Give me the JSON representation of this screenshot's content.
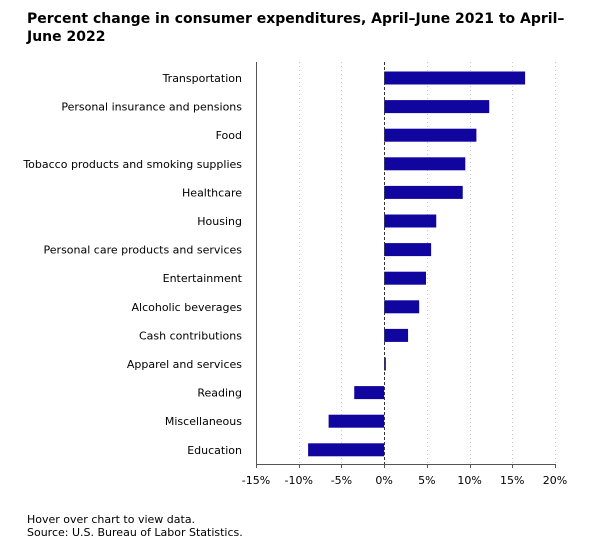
{
  "chart_data": {
    "type": "bar",
    "orientation": "horizontal",
    "title": "Percent change in consumer expenditures, April–June 2021 to April–June 2022",
    "xlabel": "",
    "ylabel": "",
    "xlim": [
      -15,
      20
    ],
    "x_ticks": [
      -15,
      -10,
      -5,
      0,
      5,
      10,
      15,
      20
    ],
    "x_tick_labels": [
      "-15%",
      "-10%",
      "-5%",
      "0%",
      "5%",
      "10%",
      "15%",
      "20%"
    ],
    "grid": true,
    "categories": [
      "Transportation",
      "Personal insurance and pensions",
      "Food",
      "Tobacco products and smoking supplies",
      "Healthcare",
      "Housing",
      "Personal care products and services",
      "Entertainment",
      "Alcoholic beverages",
      "Cash contributions",
      "Apparel and services",
      "Reading",
      "Miscellaneous",
      "Education"
    ],
    "values": [
      16.5,
      12.3,
      10.8,
      9.5,
      9.2,
      6.1,
      5.5,
      4.9,
      4.1,
      2.8,
      0.2,
      -3.5,
      -6.5,
      -8.9
    ],
    "bar_color": "#10069f"
  },
  "notes": {
    "hover": "Hover over chart to view data.",
    "source": "Source: U.S. Bureau of Labor Statistics."
  }
}
